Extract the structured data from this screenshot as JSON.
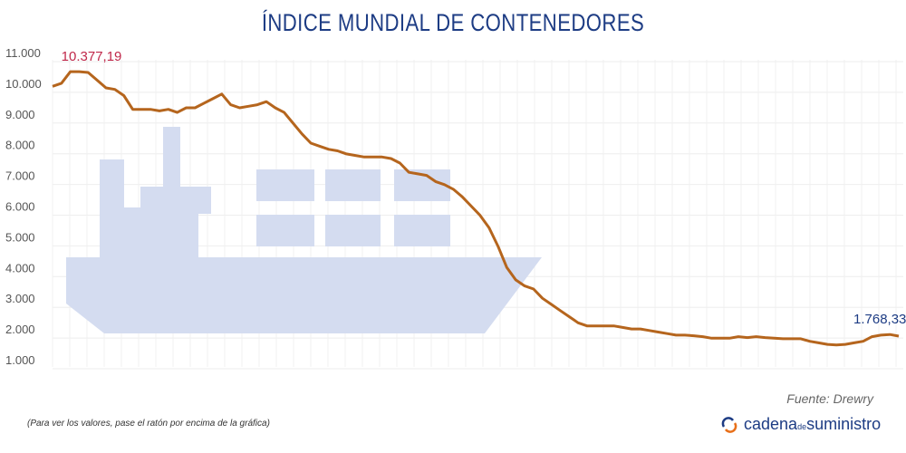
{
  "chart_data": {
    "type": "line",
    "title": "ÍNDICE MUNDIAL DE CONTENEDORES",
    "ylim": [
      1000,
      11000
    ],
    "yticks": [
      "11.000",
      "10.000",
      "9.000",
      "8.000",
      "7.000",
      "6.000",
      "5.000",
      "4.000",
      "3.000",
      "2.000",
      "1.000"
    ],
    "ytick_values": [
      11000,
      10000,
      9000,
      8000,
      7000,
      6000,
      5000,
      4000,
      3000,
      2000,
      1000
    ],
    "grid": true,
    "line_color": "#b5651d",
    "values": [
      9900,
      10000,
      10377,
      10377,
      10350,
      10100,
      9850,
      9800,
      9600,
      9150,
      9150,
      9150,
      9100,
      9150,
      9050,
      9200,
      9200,
      9350,
      9500,
      9650,
      9300,
      9200,
      9250,
      9300,
      9400,
      9200,
      9050,
      8700,
      8350,
      8050,
      7950,
      7850,
      7800,
      7700,
      7650,
      7600,
      7600,
      7600,
      7550,
      7400,
      7100,
      7050,
      7000,
      6800,
      6700,
      6550,
      6300,
      6000,
      5700,
      5300,
      4700,
      4000,
      3600,
      3400,
      3300,
      3000,
      2800,
      2600,
      2400,
      2200,
      2100,
      2100,
      2100,
      2100,
      2050,
      2000,
      2000,
      1950,
      1900,
      1850,
      1800,
      1800,
      1780,
      1750,
      1700,
      1700,
      1700,
      1750,
      1720,
      1750,
      1720,
      1700,
      1680,
      1680,
      1680,
      1600,
      1550,
      1500,
      1480,
      1500,
      1550,
      1600,
      1750,
      1800,
      1820,
      1768.33
    ],
    "annotations": [
      {
        "text": "10.377,19",
        "index": 2,
        "color": "#c0284a"
      },
      {
        "text": "1.768,33",
        "index": 95,
        "color": "#1d3c84"
      }
    ]
  },
  "footer": {
    "source": "Fuente: Drewry",
    "note": "(Para ver los valores, pase el ratón por encima de la gráfica)",
    "logo_text_1": "cadena",
    "logo_text_2": "de",
    "logo_text_3": "suministro"
  },
  "colors": {
    "title": "#1d3c84",
    "ship": "#d4dcf0",
    "line": "#b5651d"
  }
}
